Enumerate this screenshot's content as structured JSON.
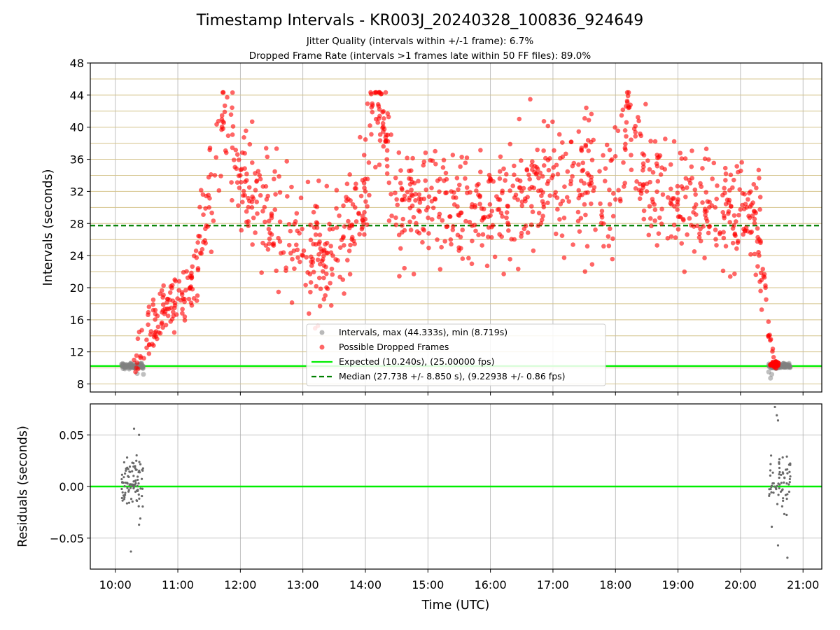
{
  "chart_data": [
    {
      "type": "scatter",
      "title": "Timestamp Intervals - KR003J_20240328_100836_924649",
      "subtitle_lines": [
        "Jitter Quality (intervals within +/-1 frame): 6.7%",
        "Dropped Frame Rate (intervals >1 frames late within 50 FF files): 89.0%"
      ],
      "xlabel": "",
      "ylabel": "Intervals (seconds)",
      "xlim_hours": [
        9.6,
        21.3
      ],
      "ylim": [
        7,
        48
      ],
      "xticks": [
        10,
        11,
        12,
        13,
        14,
        15,
        16,
        17,
        18,
        19,
        20,
        21
      ],
      "xtick_labels": [
        "10:00",
        "11:00",
        "12:00",
        "13:00",
        "14:00",
        "15:00",
        "16:00",
        "17:00",
        "18:00",
        "19:00",
        "20:00",
        "21:00"
      ],
      "yticks": [
        8,
        12,
        16,
        20,
        24,
        28,
        32,
        36,
        40,
        44,
        48
      ],
      "grid": true,
      "y_gridlines": [
        8,
        10,
        12,
        14,
        16,
        18,
        20,
        22,
        24,
        26,
        28,
        30,
        32,
        34,
        36,
        38,
        40,
        42,
        44,
        46
      ],
      "legend_position": "lower-center",
      "series": [
        {
          "name": "Intervals, max (44.333s), min (8.719s)",
          "color": "#808080",
          "marker": "circle",
          "clusters": [
            {
              "x_range": [
                10.1,
                10.45
              ],
              "y_mean": 10.24,
              "y_spread": 0.35,
              "count": 90
            },
            {
              "x_range": [
                20.45,
                20.8
              ],
              "y_mean": 10.24,
              "y_spread": 0.35,
              "count": 90
            }
          ],
          "points": [
            [
              10.35,
              9.3
            ],
            [
              10.45,
              9.2
            ],
            [
              20.45,
              9.5
            ],
            [
              20.48,
              8.72
            ],
            [
              20.5,
              9.2
            ]
          ]
        },
        {
          "name": "Possible Dropped Frames",
          "color": "#ff0000",
          "marker": "circle",
          "trend_note": "rises from ~11 s at 10:20 to ~30 s by 11:40, fluctuates 20-44 s until 20:00, then drops back to ~10.5 s by 20:35",
          "key_points": [
            [
              10.3,
              11.0
            ],
            [
              10.5,
              13.5
            ],
            [
              10.8,
              17.0
            ],
            [
              11.2,
              20.0
            ],
            [
              11.5,
              30.0
            ],
            [
              11.75,
              41.9
            ],
            [
              12.0,
              34.0
            ],
            [
              12.5,
              29.0
            ],
            [
              13.0,
              24.0
            ],
            [
              13.3,
              24.5
            ],
            [
              13.6,
              25.0
            ],
            [
              14.0,
              32.0
            ],
            [
              14.15,
              44.3
            ],
            [
              14.5,
              31.0
            ],
            [
              15.0,
              30.0
            ],
            [
              15.5,
              29.0
            ],
            [
              16.0,
              29.0
            ],
            [
              16.5,
              32.0
            ],
            [
              17.0,
              34.0
            ],
            [
              17.5,
              33.0
            ],
            [
              18.0,
              31.0
            ],
            [
              18.2,
              43.9
            ],
            [
              18.5,
              32.0
            ],
            [
              19.0,
              31.0
            ],
            [
              19.5,
              30.0
            ],
            [
              19.9,
              29.0
            ],
            [
              20.1,
              30.0
            ],
            [
              20.3,
              26.0
            ],
            [
              20.4,
              20.0
            ],
            [
              20.45,
              14.0
            ],
            [
              20.55,
              10.5
            ]
          ],
          "max": 44.333
        },
        {
          "name": "Expected (10.240s), (25.00000 fps)",
          "color": "#00ee00",
          "style": "solid",
          "y": 10.24
        },
        {
          "name": "Median (27.738 +/- 8.850 s), (9.22938 +/- 0.86 fps)",
          "color": "#008000",
          "style": "dashed",
          "y": 27.738
        }
      ]
    },
    {
      "type": "scatter",
      "xlabel": "Time (UTC)",
      "ylabel": "Residuals (seconds)",
      "xlim_hours": [
        9.6,
        21.3
      ],
      "ylim": [
        -0.08,
        0.08
      ],
      "yticks": [
        -0.05,
        0.0,
        0.05
      ],
      "ytick_labels": [
        "−0.05",
        "0.00",
        "0.05"
      ],
      "xticks": [
        10,
        11,
        12,
        13,
        14,
        15,
        16,
        17,
        18,
        19,
        20,
        21
      ],
      "xtick_labels": [
        "10:00",
        "11:00",
        "12:00",
        "13:00",
        "14:00",
        "15:00",
        "16:00",
        "17:00",
        "18:00",
        "19:00",
        "20:00",
        "21:00"
      ],
      "grid": true,
      "series": [
        {
          "name": "",
          "color": "#696969",
          "marker": "dot",
          "clusters": [
            {
              "x_range": [
                10.1,
                10.45
              ],
              "y_mean": 0.005,
              "y_spread": 0.02,
              "count": 90
            },
            {
              "x_range": [
                20.45,
                20.8
              ],
              "y_mean": 0.005,
              "y_spread": 0.025,
              "count": 65
            }
          ],
          "points": [
            [
              10.25,
              -0.063
            ],
            [
              10.3,
              0.056
            ],
            [
              10.38,
              0.05
            ],
            [
              10.4,
              -0.031
            ],
            [
              10.38,
              -0.037
            ],
            [
              20.55,
              0.077
            ],
            [
              20.58,
              0.069
            ],
            [
              20.6,
              0.064
            ],
            [
              20.6,
              -0.057
            ],
            [
              20.75,
              -0.069
            ],
            [
              20.5,
              -0.039
            ]
          ]
        },
        {
          "name": "",
          "color": "#00ee00",
          "style": "solid",
          "y": 0.0
        }
      ]
    }
  ]
}
